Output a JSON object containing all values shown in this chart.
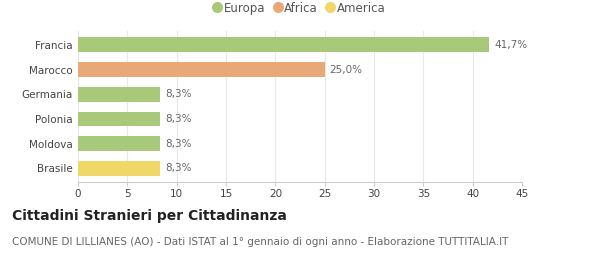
{
  "categories": [
    "Francia",
    "Marocco",
    "Germania",
    "Polonia",
    "Moldova",
    "Brasile"
  ],
  "values": [
    41.7,
    25.0,
    8.3,
    8.3,
    8.3,
    8.3
  ],
  "bar_colors": [
    "#a8c87a",
    "#e8a878",
    "#a8c87a",
    "#a8c87a",
    "#a8c87a",
    "#f0d868"
  ],
  "value_labels": [
    "41,7%",
    "25,0%",
    "8,3%",
    "8,3%",
    "8,3%",
    "8,3%"
  ],
  "legend_labels": [
    "Europa",
    "Africa",
    "America"
  ],
  "legend_colors": [
    "#a8c87a",
    "#e8a878",
    "#f0d868"
  ],
  "title": "Cittadini Stranieri per Cittadinanza",
  "subtitle": "COMUNE DI LILLIANES (AO) - Dati ISTAT al 1° gennaio di ogni anno - Elaborazione TUTTITALIA.IT",
  "xlim": [
    0,
    45
  ],
  "xticks": [
    0,
    5,
    10,
    15,
    20,
    25,
    30,
    35,
    40,
    45
  ],
  "background_color": "#ffffff",
  "grid_color": "#e8e8e8",
  "bar_height": 0.6,
  "title_fontsize": 10,
  "subtitle_fontsize": 7.5,
  "label_fontsize": 7.5,
  "tick_fontsize": 7.5,
  "legend_fontsize": 8.5
}
